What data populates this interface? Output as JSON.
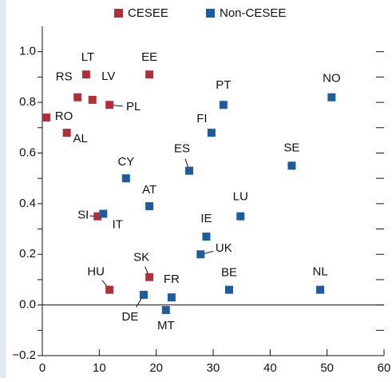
{
  "chart_data": {
    "type": "scatter",
    "series": [
      {
        "name": "CESEE",
        "color": "#b22f3a",
        "labels": [
          "RO",
          "AL",
          "RS",
          "LT",
          "LV",
          "PL",
          "EE",
          "SI",
          "HU",
          "SK"
        ],
        "x": [
          0.7,
          4.3,
          6.2,
          7.7,
          8.8,
          11.8,
          18.8,
          9.7,
          11.8,
          18.8
        ],
        "values": [
          0.74,
          0.68,
          0.82,
          0.91,
          0.81,
          0.79,
          0.91,
          0.35,
          0.06,
          0.11
        ]
      },
      {
        "name": "Non-CESEE",
        "color": "#1d5c9e",
        "labels": [
          "IT",
          "CY",
          "AT",
          "ES",
          "FI",
          "PT",
          "NO",
          "SE",
          "LU",
          "IE",
          "UK",
          "BE",
          "NL",
          "DE",
          "FR",
          "MT"
        ],
        "x": [
          10.7,
          14.7,
          18.8,
          25.8,
          29.7,
          31.8,
          50.8,
          43.8,
          34.8,
          28.8,
          27.8,
          32.8,
          48.8,
          17.8,
          22.7,
          21.7
        ],
        "values": [
          0.36,
          0.5,
          0.39,
          0.53,
          0.68,
          0.79,
          0.82,
          0.55,
          0.35,
          0.27,
          0.2,
          0.06,
          0.06,
          0.04,
          0.03,
          -0.02
        ]
      }
    ],
    "xlim": [
      0,
      60
    ],
    "xticks": [
      0,
      10,
      20,
      30,
      40,
      50,
      60
    ],
    "ylim": [
      -0.2,
      1.1
    ],
    "yticks": [
      {
        "value": -0.2,
        "label": "−0.2"
      },
      {
        "value": 0,
        "label": "0.0"
      },
      {
        "value": 0.2,
        "label": "0.2"
      },
      {
        "value": 0.4,
        "label": "0.4"
      },
      {
        "value": 0.6,
        "label": "0.6"
      },
      {
        "value": 0.8,
        "label": "0.8"
      },
      {
        "value": 1.0,
        "label": "1.0"
      }
    ],
    "yminor_ticks": [
      -0.1,
      0.1,
      0.3,
      0.5,
      0.7,
      0.9
    ],
    "zero_line": true
  }
}
